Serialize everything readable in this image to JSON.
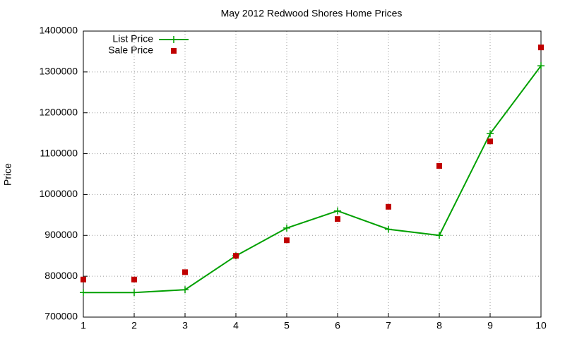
{
  "chart_data": {
    "type": "line",
    "title": "May 2012 Redwood Shores Home Prices",
    "y_label": "Price",
    "x": [
      1,
      2,
      3,
      4,
      5,
      6,
      7,
      8,
      9,
      10
    ],
    "series": [
      {
        "name": "List Price",
        "color": "#00a000",
        "style": "line-points",
        "values": [
          760000,
          760000,
          767000,
          850000,
          918000,
          960000,
          915000,
          900000,
          1149000,
          1315000
        ]
      },
      {
        "name": "Sale Price",
        "color": "#c00000",
        "style": "points",
        "values": [
          792000,
          792000,
          810000,
          850000,
          888000,
          940000,
          970000,
          1070000,
          1130000,
          1360000
        ]
      }
    ],
    "xlim": [
      1,
      10
    ],
    "xticks": [
      1,
      2,
      3,
      4,
      5,
      6,
      7,
      8,
      9,
      10
    ],
    "ylim": [
      700000,
      1400000
    ],
    "yticks": [
      700000,
      800000,
      900000,
      1000000,
      1100000,
      1200000,
      1300000,
      1400000
    ],
    "grid": true,
    "legend": "top-left"
  }
}
